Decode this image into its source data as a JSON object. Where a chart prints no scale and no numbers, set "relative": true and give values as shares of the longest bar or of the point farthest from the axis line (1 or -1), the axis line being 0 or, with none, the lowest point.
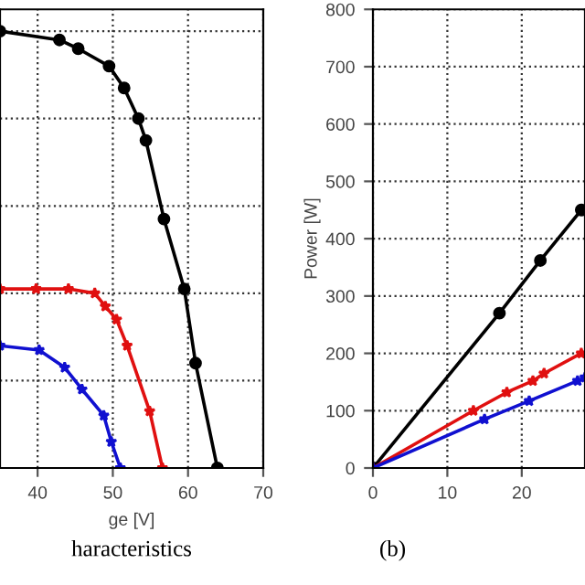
{
  "chart_data": [
    {
      "type": "line",
      "relative": true,
      "xlabel": "ge [V]",
      "title": "haracteristics",
      "xlim": [
        35,
        70
      ],
      "xticks": [
        40,
        50,
        60,
        70
      ],
      "grid": true,
      "legend": false,
      "line_style": "solid",
      "tick_labels": "x",
      "series": [
        {
          "color": "#000000",
          "marker": "circle",
          "x": [
            35,
            42.9,
            45.4,
            49.5,
            51.5,
            53.4,
            54.4,
            56.8,
            59.5,
            61.0,
            63.9
          ],
          "values": [
            1.0,
            0.98,
            0.96,
            0.92,
            0.87,
            0.8,
            0.75,
            0.57,
            0.41,
            0.24,
            0
          ]
        },
        {
          "color": "#e01010",
          "marker": "star",
          "x": [
            35,
            39.8,
            44.1,
            47.6,
            49.0,
            50.5,
            51.9,
            54.9,
            56.6
          ],
          "values": [
            0.41,
            0.41,
            0.41,
            0.4,
            0.37,
            0.34,
            0.28,
            0.13,
            0
          ]
        },
        {
          "color": "#1010d0",
          "marker": "star",
          "x": [
            35,
            40.2,
            43.6,
            45.9,
            48.8,
            49.8,
            51.0
          ],
          "values": [
            0.28,
            0.27,
            0.23,
            0.18,
            0.12,
            0.06,
            0
          ]
        }
      ]
    },
    {
      "type": "line",
      "ylabel": "Power [W]",
      "title": "(b)",
      "xlim": [
        0,
        28.5
      ],
      "xticks": [
        0,
        10,
        20
      ],
      "ylim": [
        0,
        800
      ],
      "yticks": [
        0,
        100,
        200,
        300,
        400,
        500,
        600,
        700,
        800
      ],
      "grid": true,
      "legend": false,
      "line_style": "solid",
      "series": [
        {
          "color": "#000000",
          "marker": "circle",
          "x": [
            0,
            17,
            22.5,
            28
          ],
          "values": [
            0,
            270,
            362,
            450
          ]
        },
        {
          "color": "#e01010",
          "marker": "star",
          "x": [
            0,
            13.5,
            18,
            21.5,
            23,
            28
          ],
          "values": [
            0,
            100,
            132,
            152,
            165,
            200
          ]
        },
        {
          "color": "#1010d0",
          "marker": "star",
          "x": [
            0,
            15,
            21,
            27.5,
            28.5
          ],
          "values": [
            0,
            85,
            117,
            152,
            158
          ]
        }
      ]
    }
  ]
}
